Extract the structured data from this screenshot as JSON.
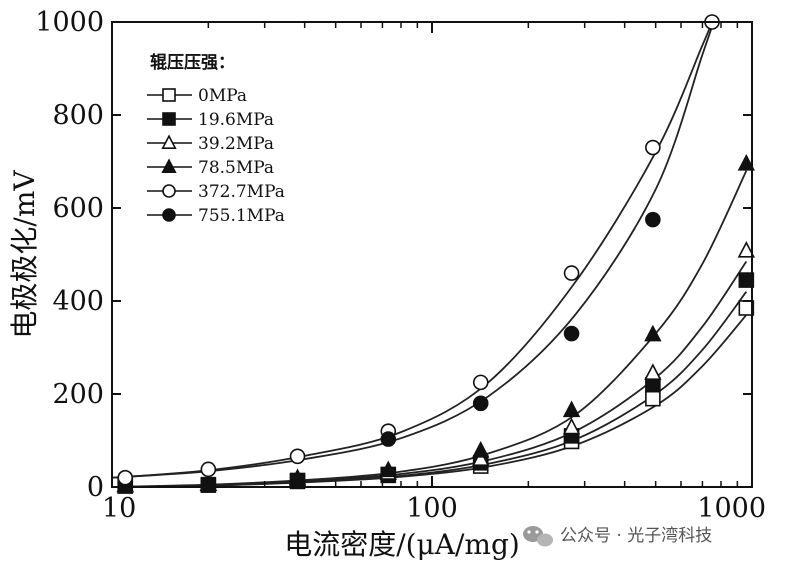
{
  "chart_data": {
    "type": "scatter",
    "xscale": "log",
    "xlim": [
      10,
      1000
    ],
    "ylim": [
      0,
      1000
    ],
    "xticks": [
      "10",
      "100",
      "1000"
    ],
    "yticks": [
      "0",
      "200",
      "400",
      "600",
      "800",
      "1000"
    ],
    "xlabel": "电流密度/(μA/mg)",
    "ylabel": "电极极化/mV",
    "legend_title": "辊压压强：",
    "legend_position": "top-left",
    "grid": false,
    "series": [
      {
        "name": "0MPa",
        "marker": "square-open",
        "x": [
          11,
          20,
          38,
          73,
          142,
          273,
          490,
          960
        ],
        "y": [
          2,
          4,
          12,
          25,
          45,
          98,
          190,
          385
        ]
      },
      {
        "name": "19.6MPa",
        "marker": "square-filled",
        "x": [
          11,
          20,
          38,
          73,
          142,
          273,
          490,
          960
        ],
        "y": [
          3,
          5,
          14,
          27,
          52,
          110,
          220,
          445
        ]
      },
      {
        "name": "39.2MPa",
        "marker": "triangle-open",
        "x": [
          11,
          20,
          38,
          73,
          142,
          273,
          490,
          960
        ],
        "y": [
          3,
          6,
          16,
          30,
          60,
          128,
          245,
          508
        ]
      },
      {
        "name": "78.5MPa",
        "marker": "triangle-filled",
        "x": [
          11,
          20,
          38,
          73,
          142,
          273,
          490,
          960
        ],
        "y": [
          4,
          7,
          19,
          36,
          78,
          165,
          328,
          695
        ]
      },
      {
        "name": "372.7MPa",
        "marker": "circle-open",
        "x": [
          11,
          20,
          38,
          73,
          142,
          273,
          490,
          750
        ],
        "y": [
          20,
          38,
          66,
          120,
          225,
          460,
          730,
          1000
        ]
      },
      {
        "name": "755.1MPa",
        "marker": "circle-filled",
        "x": [
          73,
          142,
          273,
          490
        ],
        "y": [
          103,
          180,
          330,
          575
        ]
      }
    ],
    "fit_curves": [
      {
        "x": [
          10,
          20,
          40,
          80,
          150,
          280,
          500,
          700,
          960
        ],
        "y": [
          0,
          3,
          10,
          22,
          44,
          90,
          175,
          260,
          370
        ]
      },
      {
        "x": [
          10,
          20,
          40,
          80,
          150,
          280,
          500,
          700,
          960
        ],
        "y": [
          0,
          3,
          11,
          24,
          50,
          102,
          200,
          295,
          420
        ]
      },
      {
        "x": [
          10,
          20,
          40,
          80,
          150,
          280,
          500,
          700,
          960
        ],
        "y": [
          0,
          4,
          13,
          28,
          58,
          120,
          235,
          345,
          485
        ]
      },
      {
        "x": [
          10,
          20,
          40,
          80,
          150,
          280,
          500,
          700,
          960
        ],
        "y": [
          0,
          5,
          15,
          33,
          72,
          155,
          330,
          480,
          680
        ]
      },
      {
        "x": [
          10,
          20,
          40,
          80,
          150,
          280,
          500,
          700,
          750
        ],
        "y": [
          20,
          36,
          67,
          118,
          225,
          440,
          720,
          950,
          1000
        ]
      },
      {
        "x": [
          10,
          20,
          40,
          80,
          150,
          280,
          500,
          700,
          750
        ],
        "y": [
          20,
          34,
          60,
          105,
          195,
          370,
          640,
          930,
          990
        ]
      }
    ]
  },
  "watermark": {
    "text": "公众号 · 光子湾科技",
    "icon": "wechat-icon"
  }
}
